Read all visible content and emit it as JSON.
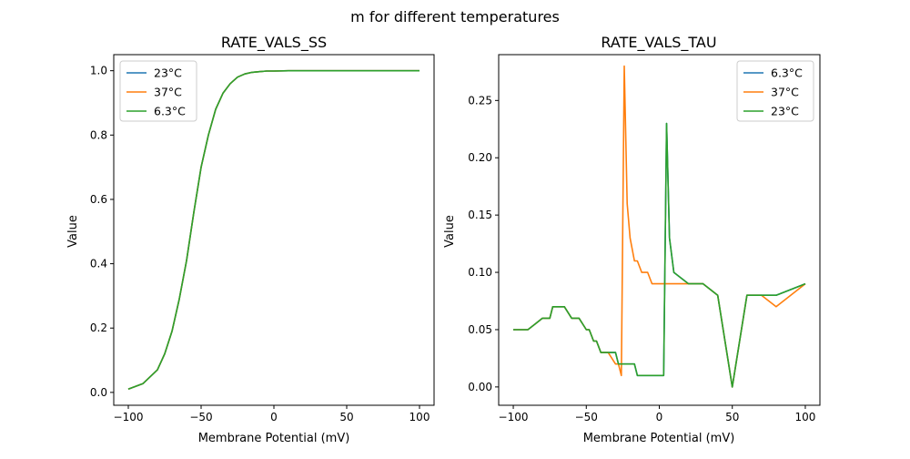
{
  "figure_title": "m for different temperatures",
  "colors": {
    "blue": "#1f77b4",
    "orange": "#ff7f0e",
    "green": "#2ca02c"
  },
  "chart_data": [
    {
      "type": "line",
      "title": "RATE_VALS_SS",
      "xlabel": "Membrane Potential (mV)",
      "ylabel": "Value",
      "xlim": [
        -110,
        110
      ],
      "ylim": [
        -0.04,
        1.05
      ],
      "xticks": [
        -100,
        -50,
        0,
        50,
        100
      ],
      "xtick_labels": [
        "−100",
        "−50",
        "0",
        "50",
        "100"
      ],
      "yticks": [
        0.0,
        0.2,
        0.4,
        0.6,
        0.8,
        1.0
      ],
      "ytick_labels": [
        "0.0",
        "0.2",
        "0.4",
        "0.6",
        "0.8",
        "1.0"
      ],
      "legend_position": "upper left",
      "grid": false,
      "series": [
        {
          "name": "23°C",
          "color": "#1f77b4",
          "x": [
            -100,
            -90,
            -80,
            -75,
            -70,
            -65,
            -60,
            -55,
            -50,
            -45,
            -40,
            -35,
            -30,
            -25,
            -20,
            -15,
            -10,
            -5,
            0,
            10,
            20,
            30,
            50,
            100
          ],
          "y": [
            0.01,
            0.027,
            0.07,
            0.12,
            0.19,
            0.29,
            0.41,
            0.56,
            0.7,
            0.8,
            0.88,
            0.93,
            0.96,
            0.98,
            0.99,
            0.995,
            0.997,
            0.999,
            0.999,
            1.0,
            1.0,
            1.0,
            1.0,
            1.0
          ]
        },
        {
          "name": "37°C",
          "color": "#ff7f0e",
          "x": [
            -100,
            -90,
            -80,
            -75,
            -70,
            -65,
            -60,
            -55,
            -50,
            -45,
            -40,
            -35,
            -30,
            -25,
            -20,
            -15,
            -10,
            -5,
            0,
            10,
            20,
            30,
            50,
            100
          ],
          "y": [
            0.01,
            0.027,
            0.07,
            0.12,
            0.19,
            0.29,
            0.41,
            0.56,
            0.7,
            0.8,
            0.88,
            0.93,
            0.96,
            0.98,
            0.99,
            0.995,
            0.997,
            0.999,
            0.999,
            1.0,
            1.0,
            1.0,
            1.0,
            1.0
          ]
        },
        {
          "name": "6.3°C",
          "color": "#2ca02c",
          "x": [
            -100,
            -90,
            -80,
            -75,
            -70,
            -65,
            -60,
            -55,
            -50,
            -45,
            -40,
            -35,
            -30,
            -25,
            -20,
            -15,
            -10,
            -5,
            0,
            10,
            20,
            30,
            50,
            100
          ],
          "y": [
            0.01,
            0.027,
            0.07,
            0.12,
            0.19,
            0.29,
            0.41,
            0.56,
            0.7,
            0.8,
            0.88,
            0.93,
            0.96,
            0.98,
            0.99,
            0.995,
            0.997,
            0.999,
            0.999,
            1.0,
            1.0,
            1.0,
            1.0,
            1.0
          ]
        }
      ]
    },
    {
      "type": "line",
      "title": "RATE_VALS_TAU",
      "xlabel": "Membrane Potential (mV)",
      "ylabel": "Value",
      "xlim": [
        -110,
        110
      ],
      "ylim": [
        -0.016,
        0.29
      ],
      "xticks": [
        -100,
        -50,
        0,
        50,
        100
      ],
      "xtick_labels": [
        "−100",
        "−50",
        "0",
        "50",
        "100"
      ],
      "yticks": [
        0.0,
        0.05,
        0.1,
        0.15,
        0.2,
        0.25
      ],
      "ytick_labels": [
        "0.00",
        "0.05",
        "0.10",
        "0.15",
        "0.20",
        "0.25"
      ],
      "legend_position": "upper right",
      "grid": false,
      "series": [
        {
          "name": "6.3°C",
          "color": "#1f77b4",
          "x": [
            -100,
            -90,
            -85,
            -80,
            -75,
            -73,
            -70,
            -65,
            -60,
            -58,
            -55,
            -50,
            -48,
            -45,
            -43,
            -40,
            -38,
            -35,
            -30,
            -28,
            -25,
            -20,
            -17,
            -15,
            -12,
            -8,
            -5,
            0,
            3,
            5,
            7,
            10,
            20,
            25,
            30,
            40,
            50,
            60,
            70,
            80,
            100
          ],
          "y": [
            0.05,
            0.05,
            0.055,
            0.06,
            0.06,
            0.07,
            0.07,
            0.07,
            0.06,
            0.06,
            0.06,
            0.05,
            0.05,
            0.04,
            0.04,
            0.03,
            0.03,
            0.03,
            0.03,
            0.02,
            0.02,
            0.02,
            0.02,
            0.01,
            0.01,
            0.01,
            0.01,
            0.01,
            0.01,
            0.23,
            0.13,
            0.1,
            0.09,
            0.09,
            0.09,
            0.08,
            0.0,
            0.08,
            0.08,
            0.08,
            0.09
          ]
        },
        {
          "name": "37°C",
          "color": "#ff7f0e",
          "x": [
            -100,
            -90,
            -85,
            -80,
            -75,
            -73,
            -70,
            -65,
            -60,
            -58,
            -55,
            -50,
            -48,
            -45,
            -43,
            -40,
            -38,
            -35,
            -30,
            -28,
            -26,
            -24,
            -22,
            -20,
            -17,
            -15,
            -12,
            -8,
            -5,
            0,
            10,
            20,
            30,
            40,
            50,
            60,
            70,
            80,
            100
          ],
          "y": [
            0.05,
            0.05,
            0.055,
            0.06,
            0.06,
            0.07,
            0.07,
            0.07,
            0.06,
            0.06,
            0.06,
            0.05,
            0.05,
            0.04,
            0.04,
            0.03,
            0.03,
            0.03,
            0.02,
            0.02,
            0.01,
            0.28,
            0.16,
            0.13,
            0.11,
            0.11,
            0.1,
            0.1,
            0.09,
            0.09,
            0.09,
            0.09,
            0.09,
            0.08,
            0.0,
            0.08,
            0.08,
            0.07,
            0.09
          ]
        },
        {
          "name": "23°C",
          "color": "#2ca02c",
          "x": [
            -100,
            -90,
            -85,
            -80,
            -75,
            -73,
            -70,
            -65,
            -60,
            -58,
            -55,
            -50,
            -48,
            -45,
            -43,
            -40,
            -38,
            -35,
            -30,
            -28,
            -25,
            -20,
            -17,
            -15,
            -12,
            -8,
            -5,
            0,
            3,
            5,
            7,
            10,
            20,
            25,
            30,
            40,
            50,
            60,
            70,
            80,
            100
          ],
          "y": [
            0.05,
            0.05,
            0.055,
            0.06,
            0.06,
            0.07,
            0.07,
            0.07,
            0.06,
            0.06,
            0.06,
            0.05,
            0.05,
            0.04,
            0.04,
            0.03,
            0.03,
            0.03,
            0.03,
            0.02,
            0.02,
            0.02,
            0.02,
            0.01,
            0.01,
            0.01,
            0.01,
            0.01,
            0.01,
            0.23,
            0.13,
            0.1,
            0.09,
            0.09,
            0.09,
            0.08,
            0.0,
            0.08,
            0.08,
            0.08,
            0.09
          ]
        }
      ]
    }
  ]
}
